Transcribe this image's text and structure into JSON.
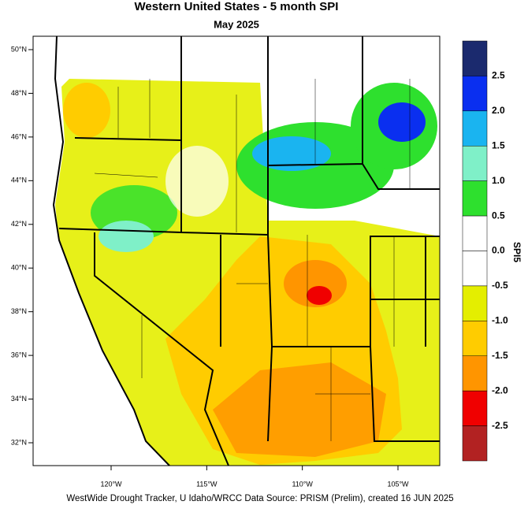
{
  "header": {
    "title": "Western United States - 5 month SPI",
    "subtitle": "May 2025"
  },
  "map": {
    "lat_labels": [
      "50°N",
      "48°N",
      "46°N",
      "44°N",
      "42°N",
      "40°N",
      "38°N",
      "36°N",
      "34°N",
      "32°N"
    ],
    "lon_labels": [
      "120°W",
      "115°W",
      "110°W",
      "105°W"
    ]
  },
  "colorbar": {
    "title": "SPI5",
    "labels": [
      "2.5",
      "2.0",
      "1.5",
      "1.0",
      "0.5",
      "0.0",
      "-0.5",
      "-1.0",
      "-1.5",
      "-2.0",
      "-2.5"
    ],
    "colors": [
      "#1b2a6e",
      "#0a2ff0",
      "#1ab4f0",
      "#7ff0c8",
      "#2ee02e",
      "#ffffff",
      "#ffffff",
      "#e4ee00",
      "#ffcc00",
      "#ff9500",
      "#f00000",
      "#b22222"
    ]
  },
  "footer": "WestWide Drought Tracker, U Idaho/WRCC Data Source: PRISM (Prelim), created 16 JUN 2025"
}
